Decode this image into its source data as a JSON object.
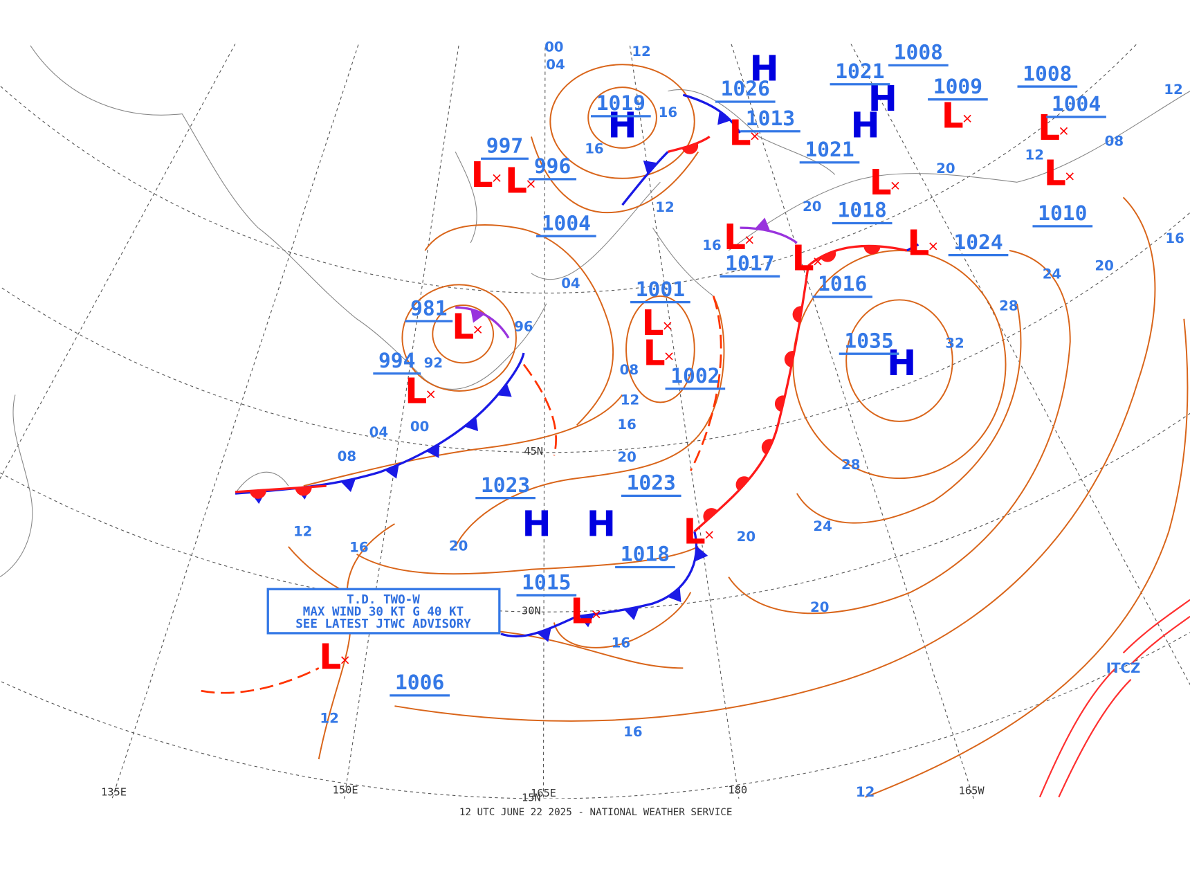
{
  "footer": "12 UTC JUNE 22 2025 - NATIONAL WEATHER SERVICE",
  "advisory": [
    "T.D. TWO-W",
    "MAX WIND 30 KT G 40 KT",
    "SEE LATEST JTWC ADVISORY"
  ],
  "symbols": {
    "high": "H",
    "low": "L"
  },
  "itcz": "ITCZ",
  "grid_labels": [
    "135E",
    "150E",
    "165E",
    "180",
    "165W",
    "45N",
    "30N",
    "15N"
  ],
  "pressure_labels": [
    997,
    996,
    1004,
    1019,
    1026,
    1013,
    1021,
    1008,
    1009,
    1021,
    1018,
    1008,
    1004,
    1010,
    1024,
    1017,
    1016,
    1001,
    1002,
    1035,
    981,
    994,
    1023,
    1023,
    1018,
    1015,
    1006
  ],
  "isobar_labels": [
    "12",
    "00",
    "04",
    "16",
    "16",
    "12",
    "16",
    "04",
    "08",
    "12",
    "16",
    "20",
    "00",
    "04",
    "08",
    "12",
    "16",
    "20",
    "16",
    "12",
    "16",
    "20",
    "24",
    "28",
    "32",
    "28",
    "24",
    "20",
    "16",
    "20",
    "12",
    "20",
    "20",
    "08",
    "12",
    "12",
    "96",
    "92"
  ]
}
